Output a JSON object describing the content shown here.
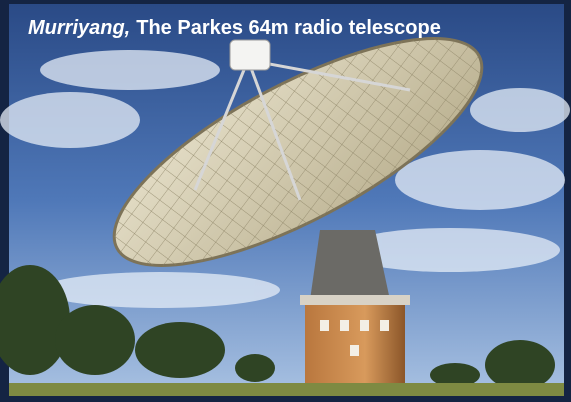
{
  "title": {
    "italic": "Murriyang,",
    "text": "The Parkes 64m radio telescope"
  }
}
